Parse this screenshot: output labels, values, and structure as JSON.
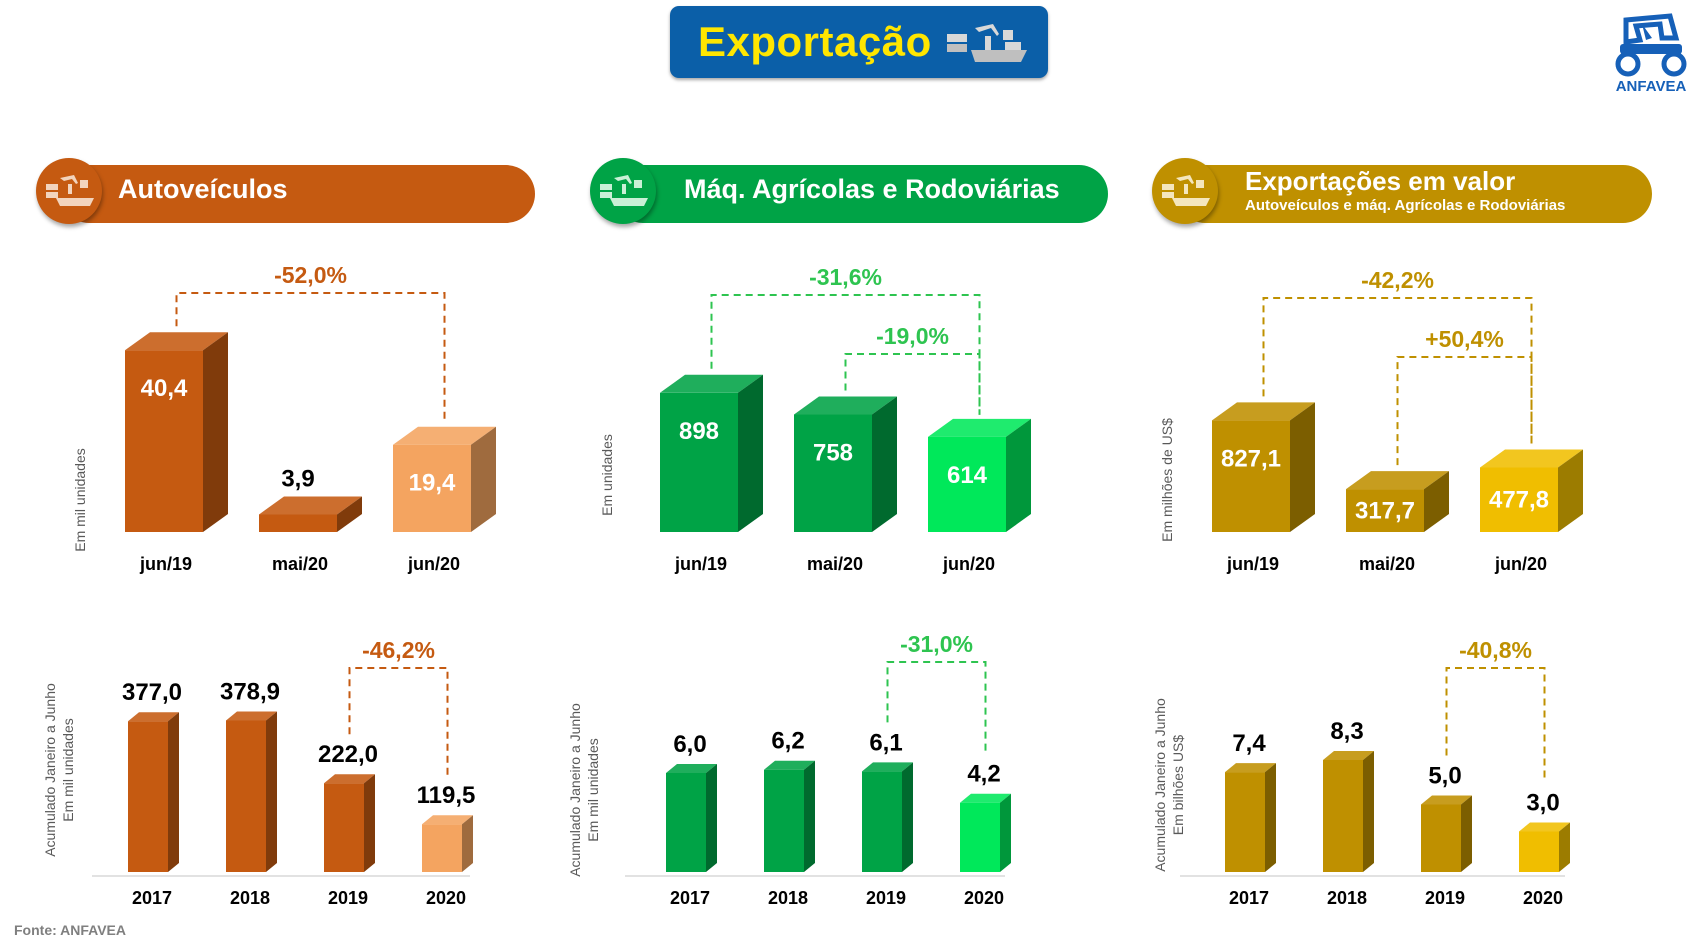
{
  "header": {
    "title": "Exportação",
    "logo_text": "ANFAVEA"
  },
  "panels": [
    {
      "title": "Autoveículos",
      "subtitle": "",
      "color": "#c55a11"
    },
    {
      "title": "Máq. Agrícolas e Rodoviárias",
      "subtitle": "",
      "color": "#00a346"
    },
    {
      "title": "Exportações em valor",
      "subtitle": "Autoveículos e máq. Agrícolas e Rodoviárias",
      "color": "#bf9000"
    }
  ],
  "footer": {
    "source": "Fonte: ANFAVEA"
  },
  "chart_data": [
    {
      "type": "bar",
      "panel": "Autoveículos",
      "categories": [
        "jun/19",
        "mai/20",
        "jun/20"
      ],
      "values": [
        40.4,
        3.9,
        19.4
      ],
      "labels": [
        "40,4",
        "3,9",
        "19,4"
      ],
      "ylabel": "Em mil unidades",
      "colors": [
        "#c55a11",
        "#c55a11",
        "#f4a460"
      ],
      "brackets": [
        {
          "from": "jun/19",
          "to": "jun/20",
          "label": "-52,0%"
        }
      ],
      "accent": "#c55a11"
    },
    {
      "type": "bar",
      "panel": "Máq. Agrícolas e Rodoviárias",
      "categories": [
        "jun/19",
        "mai/20",
        "jun/20"
      ],
      "values": [
        898,
        758,
        614
      ],
      "labels": [
        "898",
        "758",
        "614"
      ],
      "ylabel": "Em unidades",
      "colors": [
        "#00a346",
        "#00a346",
        "#00e85a"
      ],
      "brackets": [
        {
          "from": "jun/19",
          "to": "jun/20",
          "label": "-31,6%"
        },
        {
          "from": "mai/20",
          "to": "jun/20",
          "label": "-19,0%"
        }
      ],
      "accent": "#2ec450"
    },
    {
      "type": "bar",
      "panel": "Exportações em valor",
      "categories": [
        "jun/19",
        "mai/20",
        "jun/20"
      ],
      "values": [
        827.1,
        317.7,
        477.8
      ],
      "labels": [
        "827,1",
        "317,7",
        "477,8"
      ],
      "ylabel": "Em milhões de US$",
      "colors": [
        "#bf9000",
        "#bf9000",
        "#f0be00"
      ],
      "brackets": [
        {
          "from": "jun/19",
          "to": "jun/20",
          "label": "-42,2%"
        },
        {
          "from": "mai/20",
          "to": "jun/20",
          "label": "+50,4%"
        }
      ],
      "accent": "#bf9000"
    },
    {
      "type": "bar",
      "panel": "Autoveículos",
      "categories": [
        "2017",
        "2018",
        "2019",
        "2020"
      ],
      "values": [
        377.0,
        378.9,
        222.0,
        119.5
      ],
      "labels": [
        "377,0",
        "378,9",
        "222,0",
        "119,5"
      ],
      "ylabel": "Acumulado Janeiro a Junho\nEm mil unidades",
      "colors": [
        "#c55a11",
        "#c55a11",
        "#c55a11",
        "#f4a460"
      ],
      "brackets": [
        {
          "from": "2019",
          "to": "2020",
          "label": "-46,2%"
        }
      ],
      "accent": "#c55a11"
    },
    {
      "type": "bar",
      "panel": "Máq. Agrícolas e Rodoviárias",
      "categories": [
        "2017",
        "2018",
        "2019",
        "2020"
      ],
      "values": [
        6.0,
        6.2,
        6.1,
        4.2
      ],
      "labels": [
        "6,0",
        "6,2",
        "6,1",
        "4,2"
      ],
      "ylabel": "Acumulado Janeiro a Junho\nEm mil unidades",
      "colors": [
        "#00a346",
        "#00a346",
        "#00a346",
        "#00e85a"
      ],
      "brackets": [
        {
          "from": "2019",
          "to": "2020",
          "label": "-31,0%"
        }
      ],
      "accent": "#2ec450"
    },
    {
      "type": "bar",
      "panel": "Exportações em valor",
      "categories": [
        "2017",
        "2018",
        "2019",
        "2020"
      ],
      "values": [
        7.4,
        8.3,
        5.0,
        3.0
      ],
      "labels": [
        "7,4",
        "8,3",
        "5,0",
        "3,0"
      ],
      "ylabel": "Acumulado Janeiro a Junho\nEm bilhões US$",
      "colors": [
        "#bf9000",
        "#bf9000",
        "#bf9000",
        "#f0be00"
      ],
      "brackets": [
        {
          "from": "2019",
          "to": "2020",
          "label": "-40,8%"
        }
      ],
      "accent": "#bf9000"
    }
  ]
}
